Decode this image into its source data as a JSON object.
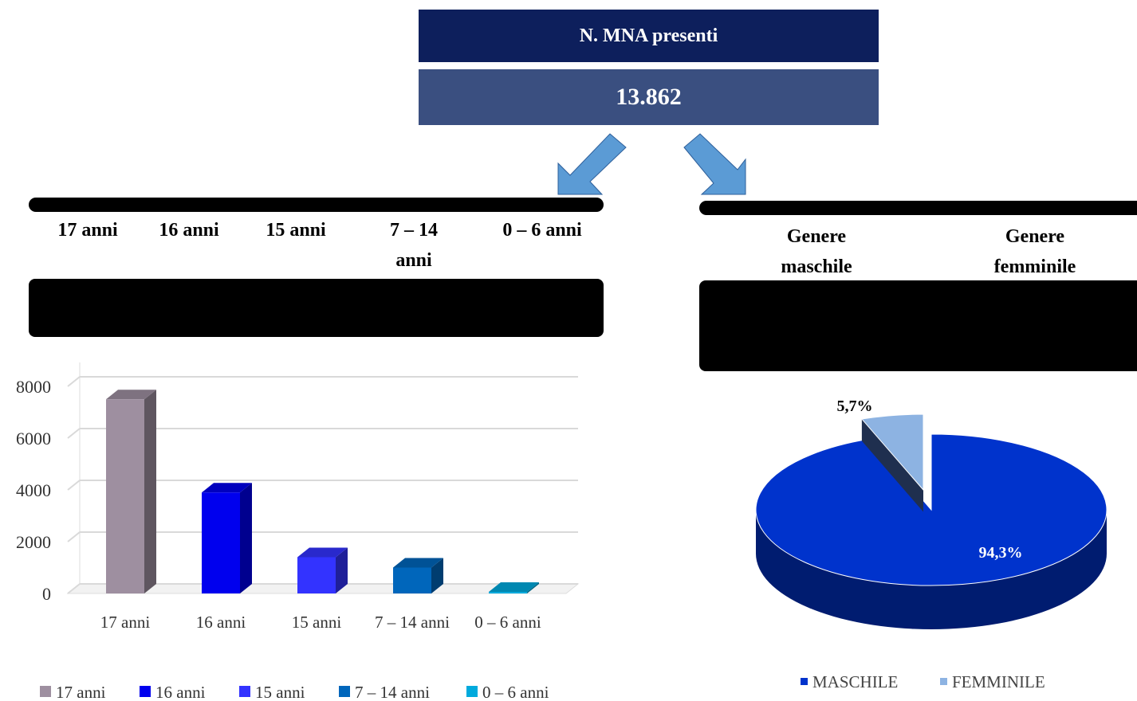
{
  "header": {
    "title": "N. MNA presenti",
    "total": "13.862"
  },
  "age_table": {
    "headers": [
      "17 anni",
      "16 anni",
      "15 anni",
      "7 – 14 anni",
      "0 – 6 anni"
    ]
  },
  "gender_table": {
    "headers": [
      "Genere maschile",
      "Genere femminile"
    ]
  },
  "chart_data": [
    {
      "type": "bar3d",
      "categories": [
        "17 anni",
        "16 anni",
        "15 anni",
        "7 – 14 anni",
        "0 – 6 anni"
      ],
      "values": [
        7500,
        3900,
        1400,
        1000,
        62
      ],
      "colors": [
        "#9e8fa0",
        "#0000ee",
        "#3333ff",
        "#0066bb",
        "#00aadd"
      ],
      "ylim": [
        0,
        8000
      ],
      "yticks": [
        0,
        2000,
        4000,
        6000,
        8000
      ],
      "grid": true,
      "legend": "bottom"
    },
    {
      "type": "pie3d",
      "categories": [
        "MASCHILE",
        "FEMMINILE"
      ],
      "values": [
        94.3,
        5.7
      ],
      "value_labels": [
        "94,3%",
        "5,7%"
      ],
      "colors": [
        "#0033cc",
        "#8db3e2"
      ],
      "legend": "bottom"
    }
  ]
}
